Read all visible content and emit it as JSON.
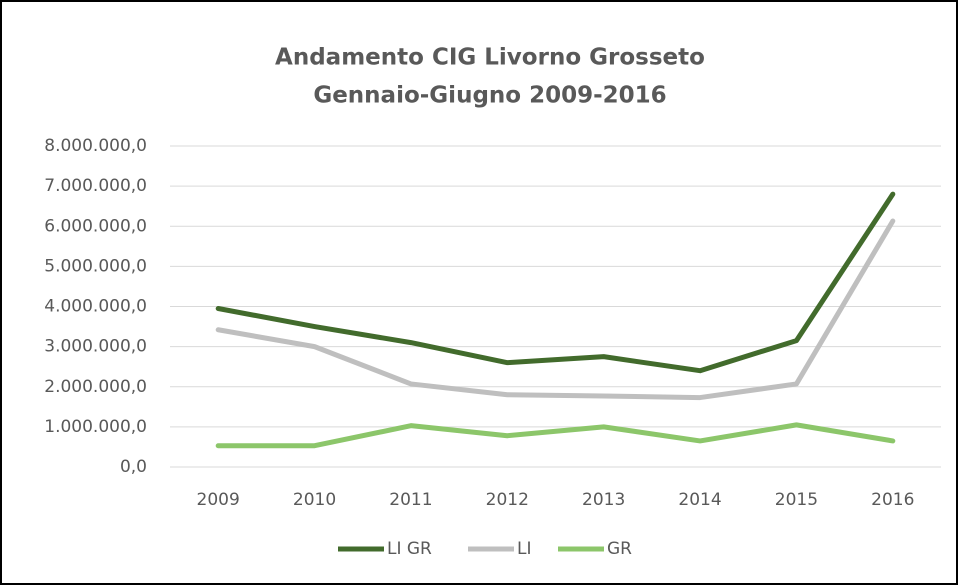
{
  "chart_data": {
    "type": "line",
    "title": "Andamento CIG Livorno Grosseto",
    "subtitle": "Gennaio-Giugno 2009-2016",
    "categories": [
      "2009",
      "2010",
      "2011",
      "2012",
      "2013",
      "2014",
      "2015",
      "2016"
    ],
    "series": [
      {
        "name": "LI GR",
        "color": "#426b2c",
        "values": [
          3950000,
          3500000,
          3100000,
          2600000,
          2750000,
          2400000,
          3150000,
          6800000
        ]
      },
      {
        "name": "LI",
        "color": "#bfbfbf",
        "values": [
          3420000,
          3000000,
          2070000,
          1800000,
          1770000,
          1730000,
          2070000,
          6130000
        ]
      },
      {
        "name": "GR",
        "color": "#8cc66a",
        "values": [
          530000,
          530000,
          1030000,
          780000,
          1000000,
          650000,
          1050000,
          650000
        ]
      }
    ],
    "ylim": [
      0,
      8000000
    ],
    "yticks": [
      {
        "value": 0,
        "label": "0,0"
      },
      {
        "value": 1000000,
        "label": "1.000.000,0"
      },
      {
        "value": 2000000,
        "label": "2.000.000,0"
      },
      {
        "value": 3000000,
        "label": "3.000.000,0"
      },
      {
        "value": 4000000,
        "label": "4.000.000,0"
      },
      {
        "value": 5000000,
        "label": "5.000.000,0"
      },
      {
        "value": 6000000,
        "label": "6.000.000,0"
      },
      {
        "value": 7000000,
        "label": "7.000.000,0"
      },
      {
        "value": 8000000,
        "label": "8.000.000,0"
      }
    ],
    "grid": true,
    "legend": "bottom"
  }
}
